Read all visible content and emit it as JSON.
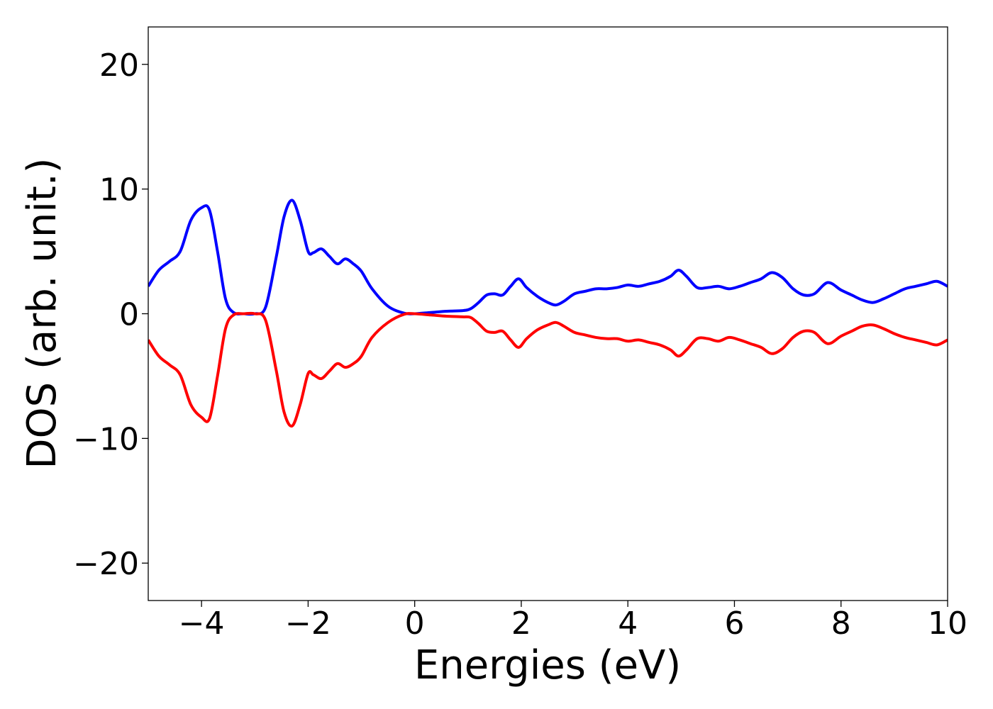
{
  "chart_data": {
    "type": "line",
    "title": "",
    "xlabel": "Energies (eV)",
    "ylabel": "DOS (arb. unit.)",
    "xlim": [
      -5,
      10
    ],
    "ylim": [
      -23,
      23
    ],
    "xticks": [
      -4,
      -2,
      0,
      2,
      4,
      6,
      8,
      10
    ],
    "yticks": [
      -20,
      -10,
      0,
      10,
      20
    ],
    "xtick_labels": [
      "−4",
      "−2",
      "0",
      "2",
      "4",
      "6",
      "8",
      "10"
    ],
    "ytick_labels": [
      "−20",
      "−10",
      "0",
      "10",
      "20"
    ],
    "grid": false,
    "legend": "none",
    "series": [
      {
        "color": "#0000ff",
        "x": [
          -5.0,
          -4.8,
          -4.6,
          -4.4,
          -4.2,
          -4.0,
          -3.85,
          -3.7,
          -3.55,
          -3.4,
          -3.2,
          -3.0,
          -2.8,
          -2.6,
          -2.45,
          -2.3,
          -2.15,
          -2.0,
          -1.9,
          -1.75,
          -1.6,
          -1.45,
          -1.3,
          -1.15,
          -1.0,
          -0.8,
          -0.5,
          -0.2,
          0.0,
          0.3,
          0.6,
          0.9,
          1.05,
          1.2,
          1.35,
          1.5,
          1.65,
          1.8,
          1.95,
          2.1,
          2.3,
          2.5,
          2.65,
          2.8,
          3.0,
          3.2,
          3.4,
          3.6,
          3.8,
          4.0,
          4.2,
          4.4,
          4.6,
          4.8,
          4.95,
          5.1,
          5.3,
          5.5,
          5.7,
          5.9,
          6.1,
          6.3,
          6.5,
          6.7,
          6.9,
          7.1,
          7.3,
          7.5,
          7.75,
          8.0,
          8.2,
          8.4,
          8.6,
          8.8,
          9.0,
          9.2,
          9.4,
          9.6,
          9.8,
          10.0
        ],
        "y": [
          2.2,
          3.5,
          4.2,
          5.0,
          7.5,
          8.5,
          8.3,
          5.0,
          1.2,
          0.1,
          0.0,
          0.0,
          0.5,
          4.5,
          7.8,
          9.1,
          7.5,
          5.0,
          4.9,
          5.2,
          4.6,
          4.0,
          4.4,
          4.0,
          3.4,
          2.0,
          0.6,
          0.05,
          0.0,
          0.1,
          0.2,
          0.25,
          0.4,
          0.9,
          1.5,
          1.6,
          1.5,
          2.2,
          2.8,
          2.1,
          1.4,
          0.9,
          0.7,
          1.0,
          1.6,
          1.8,
          2.0,
          2.0,
          2.1,
          2.3,
          2.2,
          2.4,
          2.6,
          3.0,
          3.5,
          3.0,
          2.1,
          2.1,
          2.2,
          2.0,
          2.2,
          2.5,
          2.8,
          3.3,
          2.9,
          2.0,
          1.5,
          1.6,
          2.5,
          1.9,
          1.5,
          1.1,
          0.9,
          1.2,
          1.6,
          2.0,
          2.2,
          2.4,
          2.6,
          2.2
        ]
      },
      {
        "color": "#ff0000",
        "x": [
          -5.0,
          -4.8,
          -4.6,
          -4.4,
          -4.2,
          -4.0,
          -3.85,
          -3.7,
          -3.55,
          -3.4,
          -3.2,
          -3.0,
          -2.8,
          -2.6,
          -2.45,
          -2.3,
          -2.15,
          -2.0,
          -1.9,
          -1.75,
          -1.6,
          -1.45,
          -1.3,
          -1.15,
          -1.0,
          -0.8,
          -0.5,
          -0.2,
          0.0,
          0.3,
          0.6,
          0.9,
          1.05,
          1.2,
          1.35,
          1.5,
          1.65,
          1.8,
          1.95,
          2.1,
          2.3,
          2.5,
          2.65,
          2.8,
          3.0,
          3.2,
          3.4,
          3.6,
          3.8,
          4.0,
          4.2,
          4.4,
          4.6,
          4.8,
          4.95,
          5.1,
          5.3,
          5.5,
          5.7,
          5.9,
          6.1,
          6.3,
          6.5,
          6.7,
          6.9,
          7.1,
          7.3,
          7.5,
          7.75,
          8.0,
          8.2,
          8.4,
          8.6,
          8.8,
          9.0,
          9.2,
          9.4,
          9.6,
          9.8,
          10.0
        ],
        "y": [
          -2.1,
          -3.4,
          -4.1,
          -4.9,
          -7.3,
          -8.3,
          -8.4,
          -5.0,
          -1.2,
          -0.1,
          0.0,
          0.0,
          -0.5,
          -4.5,
          -7.9,
          -9.0,
          -7.3,
          -4.8,
          -4.9,
          -5.2,
          -4.6,
          -4.0,
          -4.3,
          -4.0,
          -3.4,
          -1.9,
          -0.7,
          -0.05,
          0.0,
          -0.1,
          -0.2,
          -0.25,
          -0.3,
          -0.8,
          -1.4,
          -1.5,
          -1.4,
          -2.1,
          -2.7,
          -2.0,
          -1.3,
          -0.9,
          -0.7,
          -1.0,
          -1.5,
          -1.7,
          -1.9,
          -2.0,
          -2.0,
          -2.2,
          -2.1,
          -2.3,
          -2.5,
          -2.9,
          -3.4,
          -2.9,
          -2.0,
          -2.0,
          -2.2,
          -1.9,
          -2.1,
          -2.4,
          -2.7,
          -3.2,
          -2.8,
          -1.9,
          -1.4,
          -1.5,
          -2.4,
          -1.8,
          -1.4,
          -1.0,
          -0.9,
          -1.2,
          -1.6,
          -1.9,
          -2.1,
          -2.3,
          -2.5,
          -2.1
        ]
      }
    ]
  }
}
